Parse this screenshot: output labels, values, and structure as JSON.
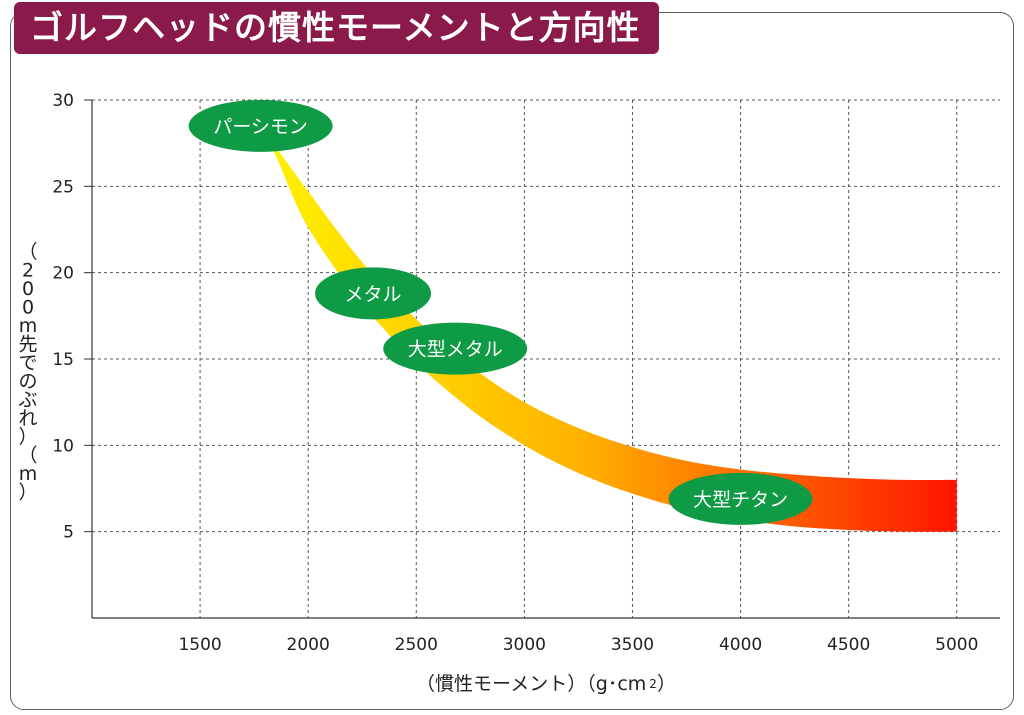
{
  "title": "ゴルフヘッドの慣性モーメントと方向性",
  "colors": {
    "banner": "#8a1a49",
    "pill": "#0f9a45",
    "band_start": "#fff200",
    "band_mid": "#ffb400",
    "band_end": "#ff1500",
    "grid": "#555555"
  },
  "chart_data": {
    "type": "area",
    "title": "ゴルフヘッドの慣性モーメントと方向性",
    "xlabel": "（慣性モーメント）（g･cm",
    "xlabel_sup": "2",
    "xlabel_close": "）",
    "ylabel": "（200m先でのぶれ）（m）",
    "xlim": [
      1000,
      5200
    ],
    "ylim": [
      0,
      30
    ],
    "x_ticks": [
      1500,
      2000,
      2500,
      3000,
      3500,
      4000,
      4500,
      5000
    ],
    "y_ticks": [
      5,
      10,
      15,
      20,
      25,
      30
    ],
    "grid": true,
    "series": [
      {
        "upper": [
          [
            1780,
            28.5
          ],
          [
            2000,
            24.7
          ],
          [
            2250,
            20.6
          ],
          [
            2500,
            17.3
          ],
          [
            2750,
            14.6
          ],
          [
            3000,
            12.5
          ],
          [
            3250,
            11.0
          ],
          [
            3500,
            9.9
          ],
          [
            3750,
            9.1
          ],
          [
            4000,
            8.6
          ],
          [
            4250,
            8.3
          ],
          [
            4500,
            8.1
          ],
          [
            4750,
            8.0
          ],
          [
            5000,
            8.0
          ]
        ],
        "lower": [
          [
            1780,
            28.5
          ],
          [
            1850,
            26.8
          ],
          [
            2000,
            22.6
          ],
          [
            2250,
            18.2
          ],
          [
            2500,
            14.8
          ],
          [
            2750,
            12.1
          ],
          [
            3000,
            10.0
          ],
          [
            3250,
            8.4
          ],
          [
            3500,
            7.2
          ],
          [
            3750,
            6.3
          ],
          [
            4000,
            5.7
          ],
          [
            4250,
            5.3
          ],
          [
            4500,
            5.1
          ],
          [
            4750,
            5.0
          ],
          [
            5000,
            5.0
          ]
        ]
      }
    ],
    "labels": [
      {
        "text": "パーシモン",
        "x": 1780,
        "y": 28.5
      },
      {
        "text": "メタル",
        "x": 2300,
        "y": 18.8
      },
      {
        "text": "大型メタル",
        "x": 2680,
        "y": 15.6
      },
      {
        "text": "大型チタン",
        "x": 4000,
        "y": 6.9
      }
    ]
  }
}
